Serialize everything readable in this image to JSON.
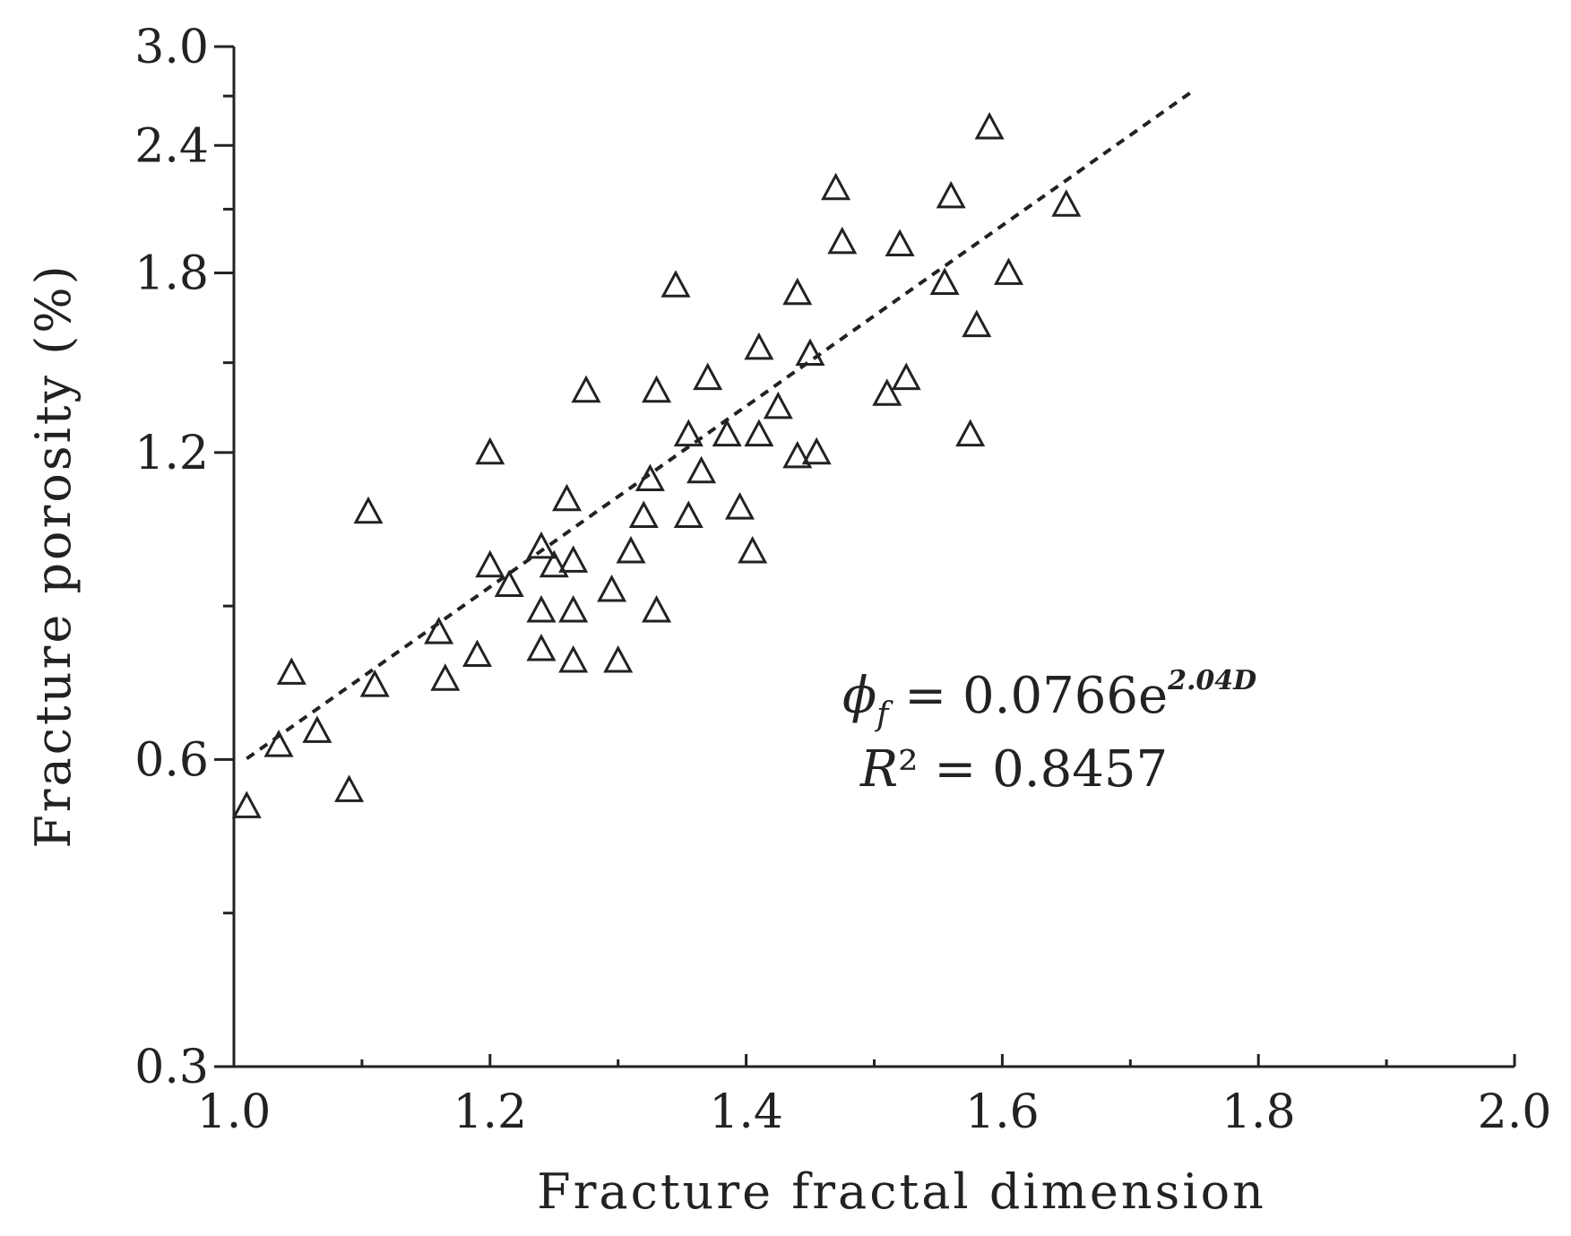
{
  "chart_data": {
    "type": "scatter",
    "xlabel": "Fracture fractal dimension",
    "ylabel": "Fracture porosity (%)",
    "xlim": [
      1.0,
      2.0
    ],
    "ylim": [
      0.3,
      3.0
    ],
    "y_scale": "log",
    "x_ticks": [
      "1.0",
      "1.2",
      "1.4",
      "1.6",
      "1.8",
      "2.0"
    ],
    "x_tick_values": [
      1.0,
      1.2,
      1.4,
      1.6,
      1.8,
      2.0
    ],
    "y_ticks": [
      "0.3",
      "0.6",
      "1.2",
      "1.8",
      "2.4",
      "3.0"
    ],
    "y_tick_values": [
      0.3,
      0.6,
      1.2,
      1.8,
      2.4,
      3.0
    ],
    "marker": "open-triangle",
    "points": [
      [
        1.01,
        0.54
      ],
      [
        1.035,
        0.62
      ],
      [
        1.045,
        0.73
      ],
      [
        1.065,
        0.64
      ],
      [
        1.09,
        0.56
      ],
      [
        1.105,
        1.05
      ],
      [
        1.11,
        0.71
      ],
      [
        1.16,
        0.8
      ],
      [
        1.165,
        0.72
      ],
      [
        1.19,
        0.76
      ],
      [
        1.2,
        1.2
      ],
      [
        1.2,
        0.93
      ],
      [
        1.215,
        0.89
      ],
      [
        1.24,
        0.97
      ],
      [
        1.24,
        0.84
      ],
      [
        1.24,
        0.77
      ],
      [
        1.25,
        0.93
      ],
      [
        1.26,
        1.08
      ],
      [
        1.265,
        0.94
      ],
      [
        1.265,
        0.84
      ],
      [
        1.265,
        0.75
      ],
      [
        1.275,
        1.38
      ],
      [
        1.295,
        0.88
      ],
      [
        1.3,
        0.75
      ],
      [
        1.31,
        0.96
      ],
      [
        1.32,
        1.04
      ],
      [
        1.325,
        1.13
      ],
      [
        1.33,
        1.38
      ],
      [
        1.33,
        0.84
      ],
      [
        1.345,
        1.75
      ],
      [
        1.355,
        1.25
      ],
      [
        1.355,
        1.04
      ],
      [
        1.365,
        1.15
      ],
      [
        1.37,
        1.42
      ],
      [
        1.385,
        1.25
      ],
      [
        1.395,
        1.06
      ],
      [
        1.405,
        0.96
      ],
      [
        1.41,
        1.52
      ],
      [
        1.41,
        1.25
      ],
      [
        1.425,
        1.33
      ],
      [
        1.44,
        1.72
      ],
      [
        1.44,
        1.19
      ],
      [
        1.45,
        1.5
      ],
      [
        1.455,
        1.2
      ],
      [
        1.47,
        2.18
      ],
      [
        1.475,
        1.93
      ],
      [
        1.51,
        1.37
      ],
      [
        1.52,
        1.92
      ],
      [
        1.525,
        1.42
      ],
      [
        1.555,
        1.76
      ],
      [
        1.56,
        2.14
      ],
      [
        1.575,
        1.25
      ],
      [
        1.58,
        1.6
      ],
      [
        1.59,
        2.5
      ],
      [
        1.605,
        1.8
      ],
      [
        1.65,
        2.1
      ]
    ],
    "trendline": {
      "type": "exponential",
      "equation": "φf = 0.0766e^2.04D",
      "coefficient": 0.0766,
      "exponent": 2.04,
      "x_range": [
        1.01,
        1.75
      ],
      "r2": "R² = 0.8457"
    },
    "annotations": {
      "eq_phi": "ϕ",
      "eq_sub": "f",
      "eq_rest": " = 0.0766e",
      "eq_sup": "2.04D",
      "r2_r": "R",
      "r2_rest": "² = 0.8457"
    },
    "grid": false,
    "legend": "none"
  }
}
